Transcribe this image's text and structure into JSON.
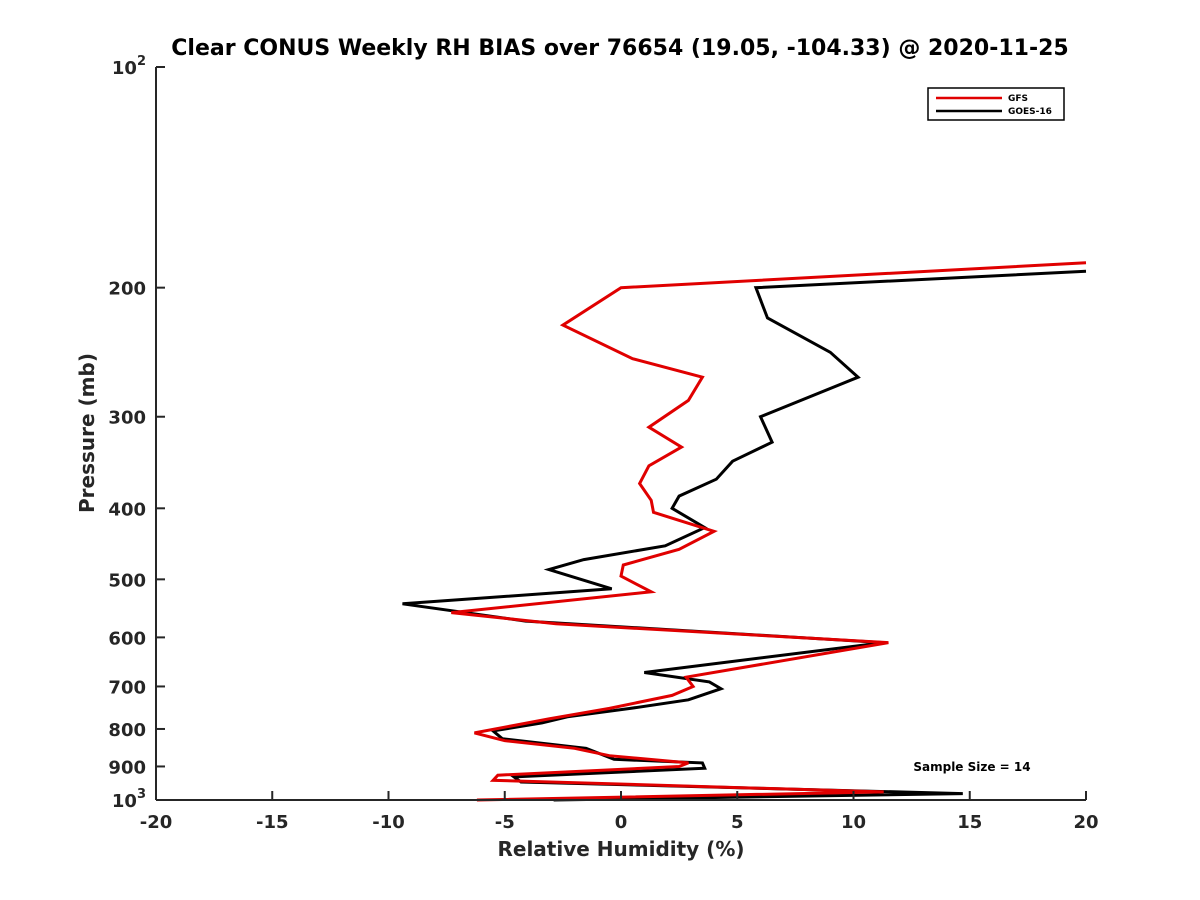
{
  "chart_data": {
    "type": "line",
    "title": "Clear CONUS Weekly RH BIAS over 76654 (19.05, -104.33) @ 2020-11-25",
    "xlabel": "Relative Humidity (%)",
    "ylabel": "Pressure (mb)",
    "xlim": [
      -20,
      20
    ],
    "ylim": [
      100,
      1000
    ],
    "yscale": "log",
    "yreversed": true,
    "grid": false,
    "legend_position": "top-right",
    "x_ticks": [
      -20,
      -15,
      -10,
      -5,
      0,
      5,
      10,
      15,
      20
    ],
    "x_tick_labels": [
      "-20",
      "-15",
      "-10",
      "-5",
      "0",
      "5",
      "10",
      "15",
      "20"
    ],
    "y_ticks": [
      {
        "value": 100,
        "base": "10",
        "exp": "2"
      },
      {
        "value": 200,
        "label": "200"
      },
      {
        "value": 300,
        "label": "300"
      },
      {
        "value": 400,
        "label": "400"
      },
      {
        "value": 500,
        "label": "500"
      },
      {
        "value": 600,
        "label": "600"
      },
      {
        "value": 700,
        "label": "700"
      },
      {
        "value": 800,
        "label": "800"
      },
      {
        "value": 900,
        "label": "900"
      },
      {
        "value": 1000,
        "base": "10",
        "exp": "3"
      }
    ],
    "annotation": "Sample Size = 14",
    "series": [
      {
        "name": "GFS",
        "color": "#e00000",
        "points": [
          [
            20,
            185
          ],
          [
            0,
            200
          ],
          [
            -2.5,
            225
          ],
          [
            0.5,
            250
          ],
          [
            3.5,
            265
          ],
          [
            2.9,
            285
          ],
          [
            1.2,
            310
          ],
          [
            2.6,
            330
          ],
          [
            1.2,
            350
          ],
          [
            0.8,
            370
          ],
          [
            1.3,
            390
          ],
          [
            1.4,
            405
          ],
          [
            4.0,
            430
          ],
          [
            2.5,
            455
          ],
          [
            0.1,
            478
          ],
          [
            0.0,
            495
          ],
          [
            1.3,
            520
          ],
          [
            -7.3,
            555
          ],
          [
            -2.8,
            575
          ],
          [
            11.5,
            610
          ],
          [
            2.8,
            680
          ],
          [
            3.1,
            700
          ],
          [
            2.2,
            720
          ],
          [
            -0.5,
            750
          ],
          [
            -3.1,
            775
          ],
          [
            -4.5,
            790
          ],
          [
            -6.3,
            810
          ],
          [
            -5.0,
            830
          ],
          [
            -2.0,
            850
          ],
          [
            -0.5,
            870
          ],
          [
            2.9,
            890
          ],
          [
            2.5,
            900
          ],
          [
            -5.3,
            925
          ],
          [
            -5.5,
            940
          ],
          [
            11.3,
            975
          ],
          [
            -6.2,
            1000
          ]
        ]
      },
      {
        "name": "GOES-16",
        "color": "#000000",
        "points": [
          [
            20,
            190
          ],
          [
            5.8,
            200
          ],
          [
            6.3,
            220
          ],
          [
            9.0,
            245
          ],
          [
            10.2,
            265
          ],
          [
            6.0,
            300
          ],
          [
            6.5,
            325
          ],
          [
            4.8,
            345
          ],
          [
            4.1,
            365
          ],
          [
            2.5,
            385
          ],
          [
            2.2,
            400
          ],
          [
            3.6,
            425
          ],
          [
            1.9,
            450
          ],
          [
            -1.6,
            470
          ],
          [
            -3.1,
            485
          ],
          [
            -0.4,
            515
          ],
          [
            -9.4,
            540
          ],
          [
            -4.1,
            570
          ],
          [
            11.3,
            610
          ],
          [
            1.0,
            670
          ],
          [
            3.8,
            690
          ],
          [
            4.3,
            705
          ],
          [
            2.9,
            730
          ],
          [
            0.4,
            750
          ],
          [
            -2.3,
            770
          ],
          [
            -3.4,
            785
          ],
          [
            -5.5,
            805
          ],
          [
            -5.1,
            825
          ],
          [
            -1.5,
            850
          ],
          [
            -0.3,
            880
          ],
          [
            3.5,
            890
          ],
          [
            3.6,
            905
          ],
          [
            -4.6,
            930
          ],
          [
            -4.3,
            945
          ],
          [
            14.7,
            980
          ],
          [
            -2.9,
            1000
          ]
        ]
      }
    ]
  }
}
